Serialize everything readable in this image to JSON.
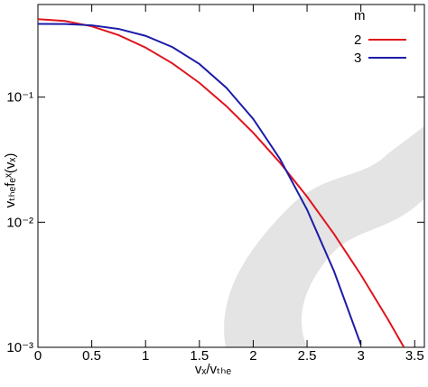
{
  "chart_data": {
    "type": "line",
    "x_label": "vₓ/vₜₕₑ",
    "y_label": "vₜₕₑfₑˣ(vₓ)",
    "legend_title": "m",
    "legend_position": "upper right",
    "log_y": true,
    "xlim": [
      0,
      3.59
    ],
    "ylim": [
      0.001,
      0.55
    ],
    "xticks": [
      0,
      0.5,
      1,
      1.5,
      2,
      2.5,
      3,
      3.5
    ],
    "yticks": [
      {
        "value": 0.001,
        "label": "10⁻³"
      },
      {
        "value": 0.01,
        "label": "10⁻²"
      },
      {
        "value": 0.1,
        "label": "10⁻¹"
      }
    ],
    "x": [
      0,
      0.25,
      0.5,
      0.75,
      1,
      1.25,
      1.5,
      1.75,
      2,
      2.25,
      2.5,
      2.75,
      3,
      3.25,
      3.4
    ],
    "series": [
      {
        "name": "2",
        "color": "#e0141e",
        "values": [
          0.42,
          0.406,
          0.368,
          0.313,
          0.249,
          0.186,
          0.13,
          0.0848,
          0.0519,
          0.0298,
          0.016,
          0.00806,
          0.0038,
          0.00168,
          0.001
        ]
      },
      {
        "name": "3",
        "color": "#1c1ca8",
        "values": [
          0.385,
          0.384,
          0.375,
          0.351,
          0.309,
          0.251,
          0.184,
          0.119,
          0.0669,
          0.0319,
          0.0126,
          0.00407,
          0.00105,
          null,
          null
        ]
      }
    ]
  }
}
